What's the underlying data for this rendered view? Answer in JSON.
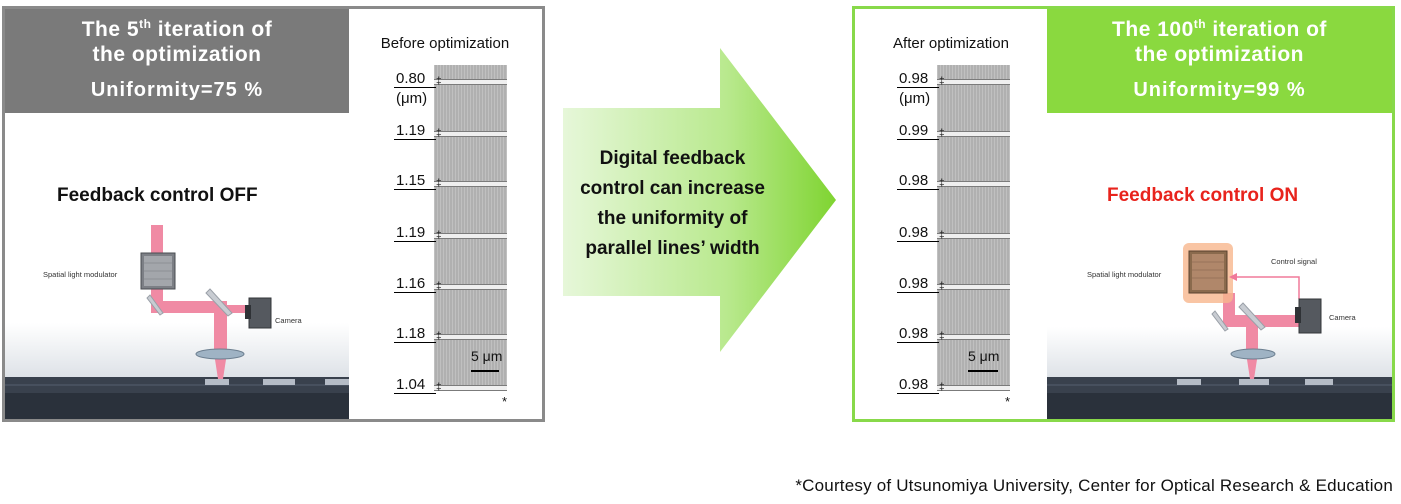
{
  "left": {
    "header": {
      "line1_pre": "The 5",
      "line1_sup": "th",
      "line1_post": " iteration of",
      "line2": "the optimization",
      "uniformity": "Uniformity=75 %"
    },
    "sem_title": "Before optimization",
    "widths": [
      "0.80",
      "1.19",
      "1.15",
      "1.19",
      "1.16",
      "1.18",
      "1.04"
    ],
    "unit": "(μm)",
    "scale_bar": "5 μm",
    "asterisk": "*",
    "control_label": "Feedback control OFF",
    "slm_label": "Spatial light modulator",
    "camera_label": "Camera"
  },
  "right": {
    "header": {
      "line1_pre": "The 100",
      "line1_sup": "th",
      "line1_post": " iteration of",
      "line2": "the optimization",
      "uniformity": "Uniformity=99 %"
    },
    "sem_title": "After optimization",
    "widths": [
      "0.98",
      "0.99",
      "0.98",
      "0.98",
      "0.98",
      "0.98",
      "0.98"
    ],
    "unit": "(μm)",
    "scale_bar": "5 μm",
    "asterisk": "*",
    "control_label": "Feedback control ON",
    "slm_label": "Spatial light modulator",
    "control_signal_label": "Control signal",
    "camera_label": "Camera"
  },
  "arrow_text": [
    "Digital feedback",
    "control can increase",
    "the uniformity of",
    "parallel lines’ width"
  ],
  "credit": "*Courtesy of Utsunomiya University, Center for Optical Research & Education",
  "colors": {
    "left_header": "#7a7a7a",
    "right_header": "#8ad93f",
    "right_border": "#88d94a",
    "arrow_green": "#8ad93f",
    "beam_pink": "#f08aa4",
    "on_label": "#e8231c"
  }
}
